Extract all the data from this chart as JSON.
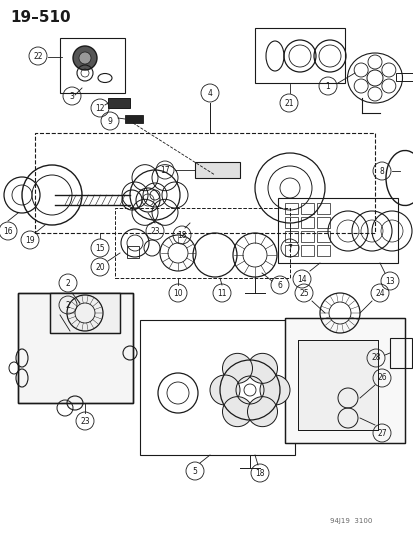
{
  "title": "19–510",
  "watermark": "94J19  3100",
  "bg": "#ffffff",
  "fg": "#1a1a1a",
  "fig_w": 4.14,
  "fig_h": 5.33,
  "dpi": 100
}
